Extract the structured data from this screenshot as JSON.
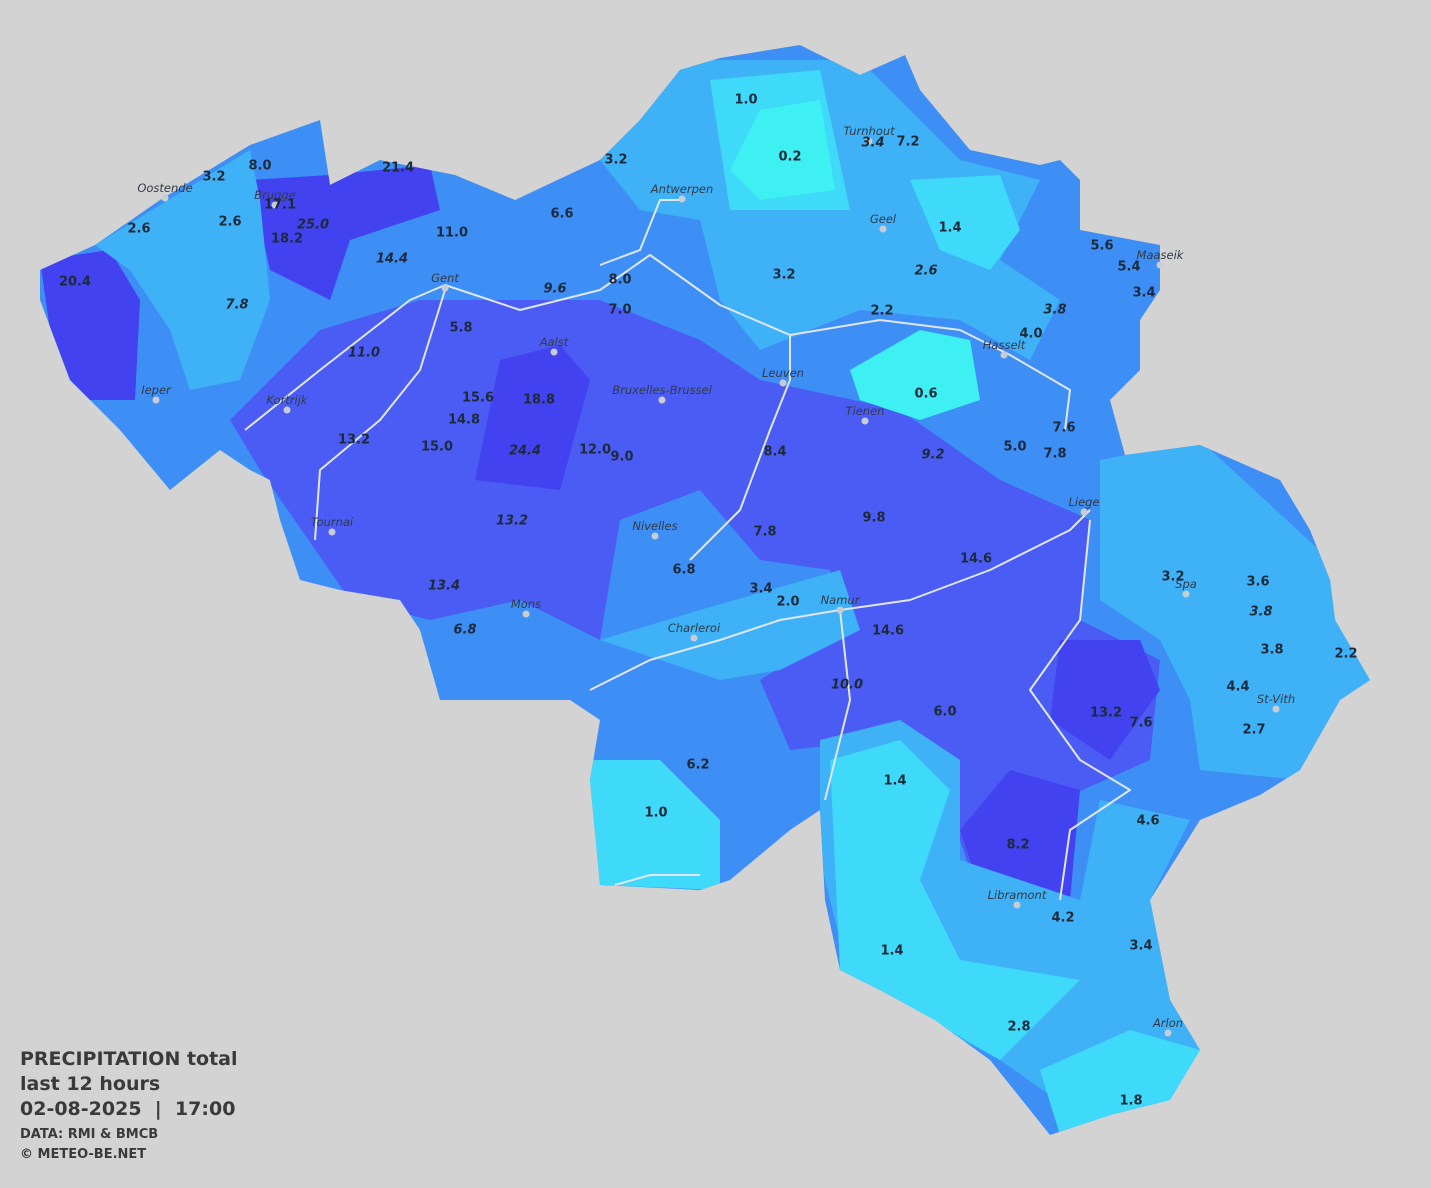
{
  "title": {
    "line1": "PRECIPITATION total",
    "line2": "last 12 hours",
    "line3": "02-08-2025  |  17:00",
    "source": "DATA: RMI & BMCB",
    "credit": "© METEO-BE.NET"
  },
  "cities": [
    "Oostende",
    "Brugge",
    "Antwerpen",
    "Turnhout",
    "Geel",
    "Maaseik",
    "Gent",
    "Aalst",
    "Hasselt",
    "Leuven",
    "Ieper",
    "Bruxelles-Brussel",
    "Kortrijk",
    "Tienen",
    "Liege",
    "Tournai",
    "Nivelles",
    "Spa",
    "Namur",
    "Mons",
    "Charleroi",
    "St-Vith",
    "Libramont",
    "Arlon"
  ],
  "readings": [
    "1.0",
    "0.2",
    "3.2",
    "3.4",
    "7.2",
    "8.0",
    "3.2",
    "21.4",
    "17.1",
    "25.0",
    "18.2",
    "2.6",
    "2.6",
    "6.6",
    "11.0",
    "14.4",
    "1.4",
    "5.6",
    "5.4",
    "3.4",
    "20.4",
    "8.0",
    "3.2",
    "2.6",
    "9.6",
    "7.0",
    "7.8",
    "2.2",
    "3.8",
    "5.8",
    "4.0",
    "11.0",
    "0.6",
    "15.6",
    "18.8",
    "14.8",
    "7.6",
    "13.2",
    "15.0",
    "24.4",
    "12.0",
    "9.0",
    "8.4",
    "9.2",
    "5.0",
    "7.8",
    "13.2",
    "9.8",
    "7.8",
    "14.6",
    "6.8",
    "3.2",
    "3.6",
    "13.4",
    "3.4",
    "2.0",
    "3.8",
    "14.6",
    "6.8",
    "3.8",
    "2.2",
    "10.0",
    "4.4",
    "6.0",
    "13.2",
    "7.6",
    "2.7",
    "6.2",
    "1.4",
    "1.0",
    "4.6",
    "8.2",
    "4.2",
    "3.4",
    "1.4",
    "2.8",
    "1.8"
  ]
}
